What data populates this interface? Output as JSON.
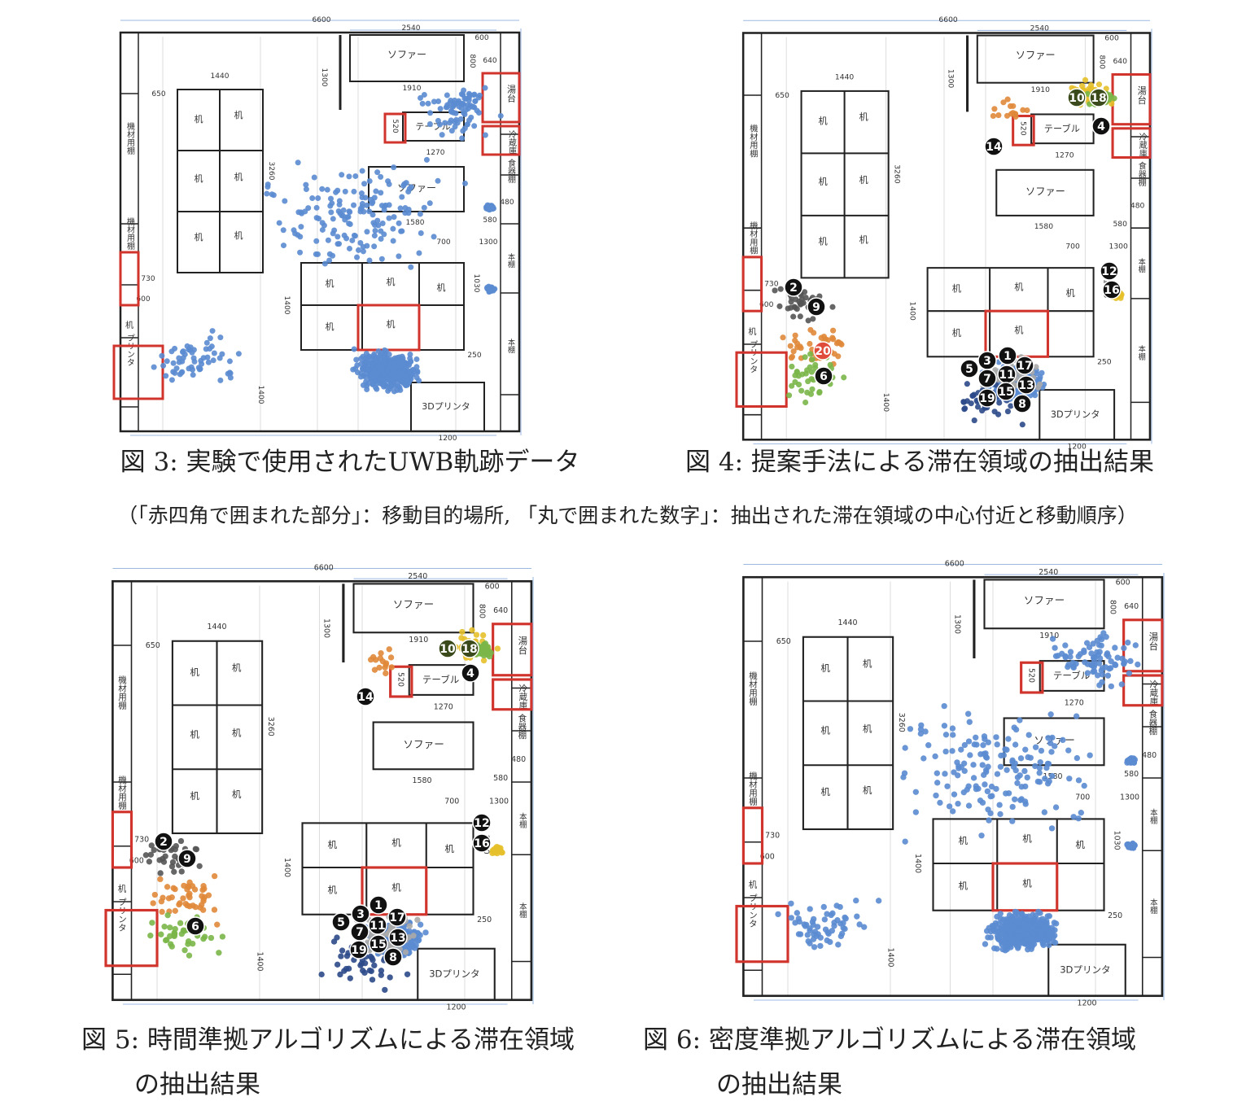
{
  "figures": [
    {
      "caption": [
        "図 3: 実験で使用されたUWB軌跡データ"
      ],
      "markers": []
    },
    {
      "caption": [
        "図 4: 提案手法による滞在領域の抽出結果"
      ],
      "markers": [
        {
          "label": "1",
          "color": "#111"
        },
        {
          "label": "2",
          "color": "#111"
        },
        {
          "label": "3",
          "color": "#111"
        },
        {
          "label": "4",
          "color": "#111"
        },
        {
          "label": "5",
          "color": "#111"
        },
        {
          "label": "6",
          "color": "#111"
        },
        {
          "label": "7",
          "color": "#111"
        },
        {
          "label": "8",
          "color": "#111"
        },
        {
          "label": "9",
          "color": "#111"
        },
        {
          "label": "10",
          "color": "#3a4a1a"
        },
        {
          "label": "11",
          "color": "#111"
        },
        {
          "label": "12",
          "color": "#111"
        },
        {
          "label": "13",
          "color": "#111"
        },
        {
          "label": "14",
          "color": "#111"
        },
        {
          "label": "15",
          "color": "#111"
        },
        {
          "label": "16",
          "color": "#111"
        },
        {
          "label": "17",
          "color": "#111"
        },
        {
          "label": "18",
          "color": "#3a4a1a"
        },
        {
          "label": "19",
          "color": "#111"
        },
        {
          "label": "20",
          "color": "#e04a3a"
        }
      ]
    },
    {
      "caption": [
        "図 5: 時間準拠アルゴリズムによる滞在領域",
        "の抽出結果"
      ],
      "markers": [
        {
          "label": "1",
          "color": "#111"
        },
        {
          "label": "2",
          "color": "#111"
        },
        {
          "label": "3",
          "color": "#111"
        },
        {
          "label": "4",
          "color": "#111"
        },
        {
          "label": "5",
          "color": "#111"
        },
        {
          "label": "6",
          "color": "#111"
        },
        {
          "label": "7",
          "color": "#111"
        },
        {
          "label": "8",
          "color": "#111"
        },
        {
          "label": "9",
          "color": "#111"
        },
        {
          "label": "10",
          "color": "#3a4a1a"
        },
        {
          "label": "11",
          "color": "#111"
        },
        {
          "label": "12",
          "color": "#111"
        },
        {
          "label": "13",
          "color": "#111"
        },
        {
          "label": "14",
          "color": "#111"
        },
        {
          "label": "15",
          "color": "#111"
        },
        {
          "label": "16",
          "color": "#111"
        },
        {
          "label": "17",
          "color": "#111"
        },
        {
          "label": "18",
          "color": "#3a4a1a"
        },
        {
          "label": "19",
          "color": "#111"
        }
      ]
    },
    {
      "caption": [
        "図 6: 密度準拠アルゴリズムによる滞在領域",
        "の抽出結果"
      ],
      "markers": []
    }
  ],
  "note": "（「赤四角で囲まれた部分」：移動目的場所,  「丸で囲まれた数字」：抽出された滞在領域の中心付近と移動順序）",
  "floor_plan": {
    "rooms": [
      "ソファー",
      "テーブル",
      "机",
      "湯台",
      "冷蔵庫",
      "食器棚",
      "機材用棚",
      "本棚",
      "プリンタ",
      "3Dプリンタ"
    ],
    "dimensions": [
      "6600",
      "2540",
      "600",
      "640",
      "800",
      "1300",
      "1910",
      "1440",
      "650",
      "520",
      "1270",
      "3260",
      "480",
      "1580",
      "700",
      "1300",
      "580",
      "1030",
      "1400",
      "730",
      "600",
      "250",
      "1400",
      "1200"
    ]
  }
}
